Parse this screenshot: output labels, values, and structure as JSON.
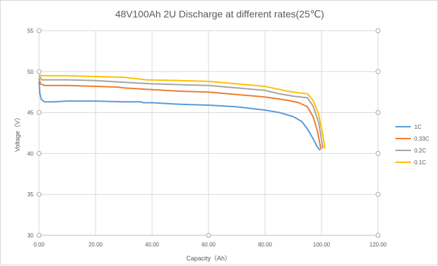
{
  "chart_data": {
    "type": "line",
    "title": "48V100Ah  2U Discharge at different rates(25℃)",
    "xlabel": "Capacity（Ah）",
    "ylabel": "Voltage（V）",
    "xlim": [
      0,
      120
    ],
    "ylim": [
      30,
      55
    ],
    "x_ticks": [
      "0.00",
      "20.00",
      "40.00",
      "60.00",
      "80.00",
      "100.00",
      "120.00"
    ],
    "y_ticks": [
      "30",
      "35",
      "40",
      "45",
      "50",
      "55"
    ],
    "grid": true,
    "legend_position": "right",
    "series": [
      {
        "name": "1C",
        "color": "#5b9bd5",
        "points": [
          [
            0,
            48.8
          ],
          [
            0.3,
            47.3
          ],
          [
            0.8,
            46.6
          ],
          [
            2,
            46.3
          ],
          [
            5,
            46.3
          ],
          [
            10,
            46.4
          ],
          [
            20,
            46.4
          ],
          [
            30,
            46.3
          ],
          [
            36,
            46.3
          ],
          [
            37,
            46.2
          ],
          [
            40,
            46.2
          ],
          [
            50,
            46.0
          ],
          [
            60,
            45.9
          ],
          [
            70,
            45.7
          ],
          [
            80,
            45.3
          ],
          [
            85,
            45.0
          ],
          [
            90,
            44.5
          ],
          [
            93,
            43.9
          ],
          [
            95,
            43.0
          ],
          [
            97,
            41.8
          ],
          [
            98.5,
            40.8
          ],
          [
            99.5,
            40.4
          ]
        ]
      },
      {
        "name": "0.33C",
        "color": "#ed7d31",
        "points": [
          [
            0,
            49.2
          ],
          [
            0.5,
            48.5
          ],
          [
            2,
            48.3
          ],
          [
            10,
            48.3
          ],
          [
            20,
            48.2
          ],
          [
            28,
            48.1
          ],
          [
            30,
            48.0
          ],
          [
            40,
            47.8
          ],
          [
            50,
            47.6
          ],
          [
            60,
            47.5
          ],
          [
            70,
            47.2
          ],
          [
            80,
            46.9
          ],
          [
            88,
            46.5
          ],
          [
            92,
            46.2
          ],
          [
            95,
            45.7
          ],
          [
            97,
            44.5
          ],
          [
            98.5,
            42.8
          ],
          [
            99.8,
            40.5
          ]
        ]
      },
      {
        "name": "0.2C",
        "color": "#a5a5a5",
        "points": [
          [
            0,
            49.5
          ],
          [
            1,
            49.0
          ],
          [
            10,
            49.0
          ],
          [
            20,
            48.9
          ],
          [
            30,
            48.7
          ],
          [
            40,
            48.5
          ],
          [
            50,
            48.4
          ],
          [
            60,
            48.3
          ],
          [
            70,
            48.0
          ],
          [
            80,
            47.7
          ],
          [
            85,
            47.3
          ],
          [
            90,
            47.0
          ],
          [
            95,
            46.8
          ],
          [
            97,
            45.8
          ],
          [
            99,
            43.8
          ],
          [
            100.5,
            40.6
          ]
        ]
      },
      {
        "name": "0.1C",
        "color": "#ffc000",
        "points": [
          [
            0,
            49.6
          ],
          [
            1,
            49.5
          ],
          [
            10,
            49.5
          ],
          [
            20,
            49.4
          ],
          [
            30,
            49.3
          ],
          [
            38,
            49.0
          ],
          [
            50,
            48.9
          ],
          [
            60,
            48.8
          ],
          [
            70,
            48.5
          ],
          [
            80,
            48.2
          ],
          [
            88,
            47.6
          ],
          [
            92,
            47.4
          ],
          [
            95,
            47.3
          ],
          [
            97,
            46.5
          ],
          [
            99,
            44.8
          ],
          [
            100.5,
            42.2
          ],
          [
            101.2,
            40.6
          ]
        ]
      }
    ]
  }
}
